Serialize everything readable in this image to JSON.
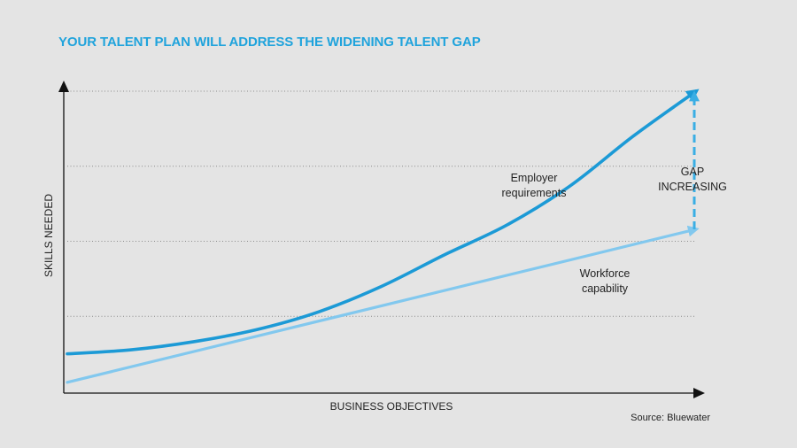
{
  "chart_data": {
    "type": "line",
    "title": "YOUR TALENT PLAN WILL ADDRESS THE WIDENING TALENT GAP",
    "xlabel": "BUSINESS OBJECTIVES",
    "ylabel": "SKILLS NEEDED",
    "xlim": [
      0,
      100
    ],
    "ylim": [
      0,
      100
    ],
    "grid": "horizontal-dotted",
    "series": [
      {
        "name": "Employer requirements",
        "color": "#1c9ad6",
        "x": [
          0,
          10,
          20,
          30,
          40,
          50,
          60,
          70,
          80,
          90,
          100
        ],
        "y": [
          12.5,
          13.8,
          16.5,
          20.5,
          26.5,
          35,
          45.5,
          55.5,
          68.5,
          85,
          100
        ]
      },
      {
        "name": "Workforce capability",
        "color": "#82c8ee",
        "x": [
          0,
          100
        ],
        "y": [
          3,
          54
        ]
      }
    ],
    "annotations": [
      {
        "text": "Employer\nrequirements",
        "series": "Employer requirements"
      },
      {
        "text": "Workforce\ncapability",
        "series": "Workforce capability"
      },
      {
        "text": "GAP\nINCREASING",
        "type": "dashed-arrow",
        "from": 54,
        "to": 100,
        "at_x": 100
      }
    ],
    "source": "Source: Bluewater"
  }
}
